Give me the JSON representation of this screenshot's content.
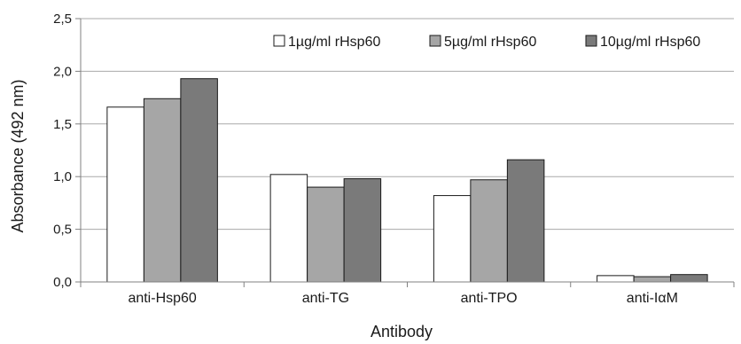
{
  "chart_data": {
    "type": "bar",
    "categories": [
      "anti-Hsp60",
      "anti-TG",
      "anti-TPO",
      "anti-IαM"
    ],
    "series": [
      {
        "name": "1µg/ml rHsp60",
        "values": [
          1.66,
          1.02,
          0.82,
          0.06
        ],
        "color": "#ffffff"
      },
      {
        "name": "5µg/ml rHsp60",
        "values": [
          1.74,
          0.9,
          0.97,
          0.05
        ],
        "color": "#a6a6a6"
      },
      {
        "name": "10µg/ml rHsp60",
        "values": [
          1.93,
          0.98,
          1.16,
          0.07
        ],
        "color": "#7a7a7a"
      }
    ],
    "xlabel": "Antibody",
    "ylabel": "Absorbance (492 nm)",
    "ylim": [
      0,
      2.5
    ],
    "yticks": [
      "0,0",
      "0,5",
      "1,0",
      "1,5",
      "2,0",
      "2,5"
    ],
    "ytick_values": [
      0,
      0.5,
      1.0,
      1.5,
      2.0,
      2.5
    ],
    "grid": true,
    "legend_position": "top-right"
  }
}
